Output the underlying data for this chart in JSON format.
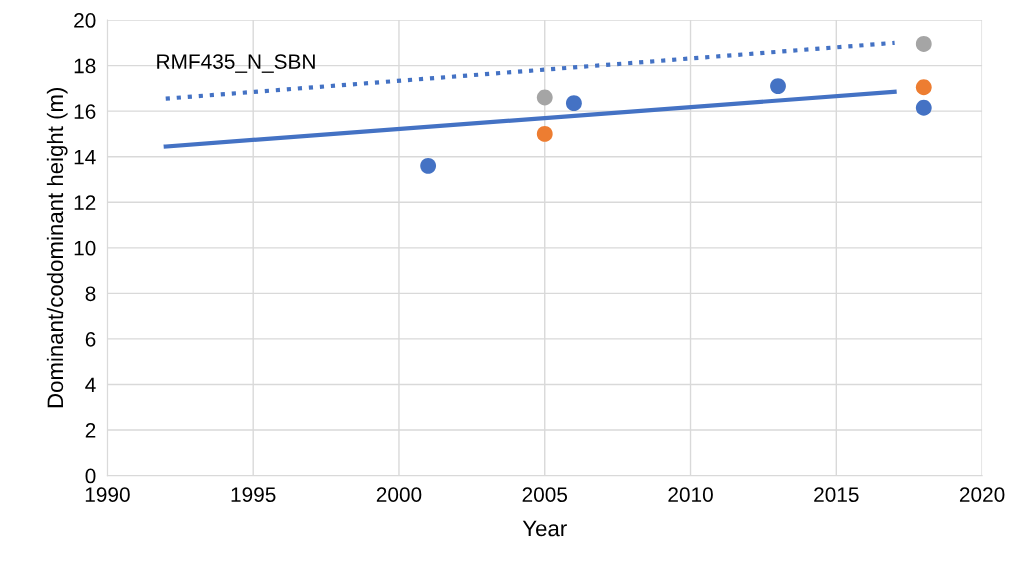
{
  "chart_data": {
    "type": "scatter",
    "xlabel": "Year",
    "ylabel": "Dominant/codominant height (m)",
    "annotations": [
      "RMF435_N_SBN"
    ],
    "series": [
      {
        "color": "#4472c4",
        "x": [
          2001,
          2006,
          2013,
          2018
        ],
        "values": [
          13.6,
          16.35,
          17.1,
          16.15
        ],
        "marker": "circle"
      },
      {
        "color": "#ed7d31",
        "x": [
          2005,
          2018
        ],
        "values": [
          15.0,
          17.05
        ],
        "marker": "circle"
      },
      {
        "color": "#a5a5a5",
        "x": [
          2005,
          2018
        ],
        "values": [
          16.6,
          18.95
        ],
        "marker": "circle"
      },
      {
        "type": "line",
        "color": "#4472c4",
        "x": [
          1992,
          2017
        ],
        "values": [
          14.45,
          16.85
        ],
        "line_style": "solid"
      },
      {
        "type": "line",
        "color": "#4472c4",
        "x": [
          1992,
          2017
        ],
        "values": [
          16.55,
          19.0
        ],
        "line_style": "dotted"
      }
    ],
    "xlim": [
      1990,
      2020
    ],
    "xticks": [
      1990,
      1995,
      2000,
      2005,
      2010,
      2015,
      2020
    ],
    "ylim": [
      0,
      20
    ],
    "yticks": [
      0,
      2,
      4,
      6,
      8,
      10,
      12,
      14,
      16,
      18,
      20
    ],
    "grid": true
  }
}
